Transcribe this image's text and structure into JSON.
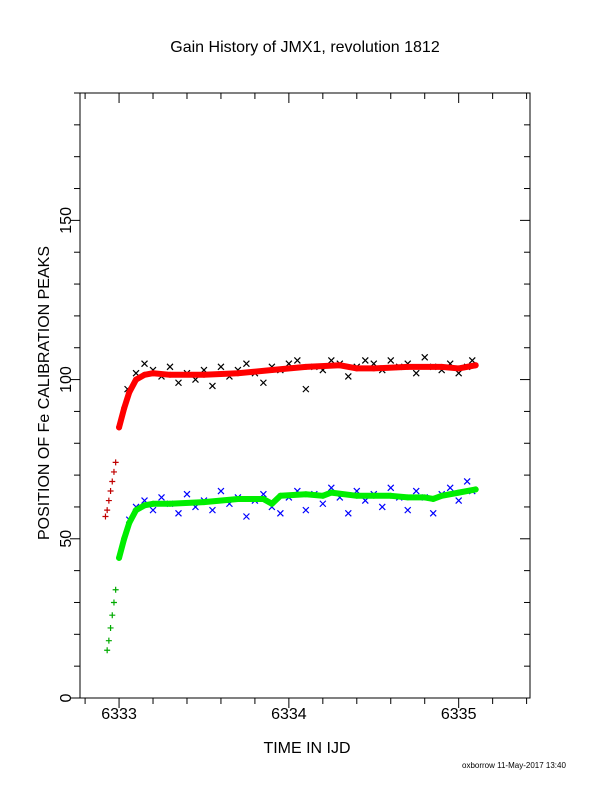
{
  "chart_data": {
    "type": "scatter",
    "title": "Gain History of JMX1, revolution 1812",
    "xlabel": "TIME IN IJD",
    "ylabel": "POSITION OF Fe CALIBRATION PEAKS",
    "xlim": [
      6332.77,
      6335.42
    ],
    "ylim": [
      0,
      190
    ],
    "xticks": [
      6333,
      6334,
      6335
    ],
    "yticks": [
      0,
      50,
      100,
      150
    ],
    "colors": {
      "upper_points": "#000000",
      "upper_early": "#c00000",
      "upper_fit": "#ff0000",
      "lower_points": "#0000ff",
      "lower_early": "#00aa00",
      "lower_fit": "#00ee00"
    },
    "series": [
      {
        "marker": "plus",
        "color": "#c00000",
        "x": [
          6332.92,
          6332.93,
          6332.94,
          6332.95,
          6332.96,
          6332.97,
          6332.98
        ],
        "y": [
          57,
          59,
          62,
          65,
          68,
          71,
          74
        ]
      },
      {
        "marker": "plus",
        "color": "#00aa00",
        "x": [
          6332.93,
          6332.94,
          6332.95,
          6332.96,
          6332.97,
          6332.98
        ],
        "y": [
          15,
          18,
          22,
          26,
          30,
          34
        ]
      },
      {
        "marker": "cross",
        "color": "#000000",
        "x": [
          6333.05,
          6333.1,
          6333.15,
          6333.2,
          6333.25,
          6333.3,
          6333.35,
          6333.4,
          6333.45,
          6333.5,
          6333.55,
          6333.6,
          6333.65,
          6333.7,
          6333.75,
          6333.8,
          6333.85,
          6333.9,
          6333.95,
          6334.0,
          6334.05,
          6334.1,
          6334.15,
          6334.2,
          6334.25,
          6334.3,
          6334.35,
          6334.4,
          6334.45,
          6334.5,
          6334.55,
          6334.6,
          6334.65,
          6334.7,
          6334.75,
          6334.8,
          6334.85,
          6334.9,
          6334.95,
          6335.0,
          6335.05,
          6335.08
        ],
        "y": [
          97,
          102,
          105,
          103,
          101,
          104,
          99,
          102,
          100,
          103,
          98,
          104,
          101,
          103,
          105,
          102,
          99,
          104,
          103,
          105,
          106,
          97,
          104,
          103,
          106,
          105,
          101,
          104,
          106,
          105,
          103,
          106,
          104,
          105,
          102,
          107,
          104,
          103,
          105,
          102,
          104,
          106
        ]
      },
      {
        "marker": "line",
        "color": "#ff0000",
        "x": [
          6333.0,
          6333.03,
          6333.06,
          6333.1,
          6333.15,
          6333.2,
          6333.3,
          6333.5,
          6333.7,
          6333.9,
          6334.1,
          6334.3,
          6334.4,
          6334.5,
          6334.7,
          6334.9,
          6335.0,
          6335.1
        ],
        "y": [
          85,
          91,
          96,
          100,
          101.5,
          102,
          101.5,
          101.5,
          102,
          103,
          104,
          104.5,
          103.5,
          103.5,
          104,
          104,
          103.5,
          104.5
        ]
      },
      {
        "marker": "cross",
        "color": "#0000ff",
        "x": [
          6333.06,
          6333.1,
          6333.15,
          6333.2,
          6333.25,
          6333.3,
          6333.35,
          6333.4,
          6333.45,
          6333.5,
          6333.55,
          6333.6,
          6333.65,
          6333.7,
          6333.75,
          6333.8,
          6333.85,
          6333.9,
          6333.95,
          6334.0,
          6334.05,
          6334.1,
          6334.15,
          6334.2,
          6334.25,
          6334.3,
          6334.35,
          6334.4,
          6334.45,
          6334.5,
          6334.55,
          6334.6,
          6334.65,
          6334.7,
          6334.75,
          6334.8,
          6334.85,
          6334.9,
          6334.95,
          6335.0,
          6335.05,
          6335.08
        ],
        "y": [
          56,
          60,
          62,
          59,
          63,
          61,
          58,
          64,
          60,
          62,
          59,
          65,
          61,
          63,
          57,
          62,
          64,
          60,
          58,
          63,
          65,
          59,
          64,
          61,
          66,
          63,
          58,
          65,
          62,
          64,
          60,
          66,
          63,
          59,
          65,
          63,
          58,
          64,
          66,
          62,
          68,
          65
        ]
      },
      {
        "marker": "line",
        "color": "#00ee00",
        "x": [
          6333.0,
          6333.03,
          6333.06,
          6333.1,
          6333.15,
          6333.2,
          6333.3,
          6333.5,
          6333.7,
          6333.85,
          6333.9,
          6333.95,
          6334.1,
          6334.2,
          6334.25,
          6334.4,
          6334.5,
          6334.6,
          6334.7,
          6334.8,
          6334.85,
          6334.9,
          6335.0,
          6335.1
        ],
        "y": [
          44,
          50,
          55,
          59,
          60.5,
          61,
          61,
          61.5,
          62.5,
          62.5,
          61,
          63.5,
          64,
          63.5,
          64.5,
          63.5,
          63.5,
          63.5,
          63,
          63,
          62.5,
          63.5,
          64.5,
          65.5
        ]
      }
    ]
  },
  "footer_note": "oxborrow 11-May-2017 13:40"
}
